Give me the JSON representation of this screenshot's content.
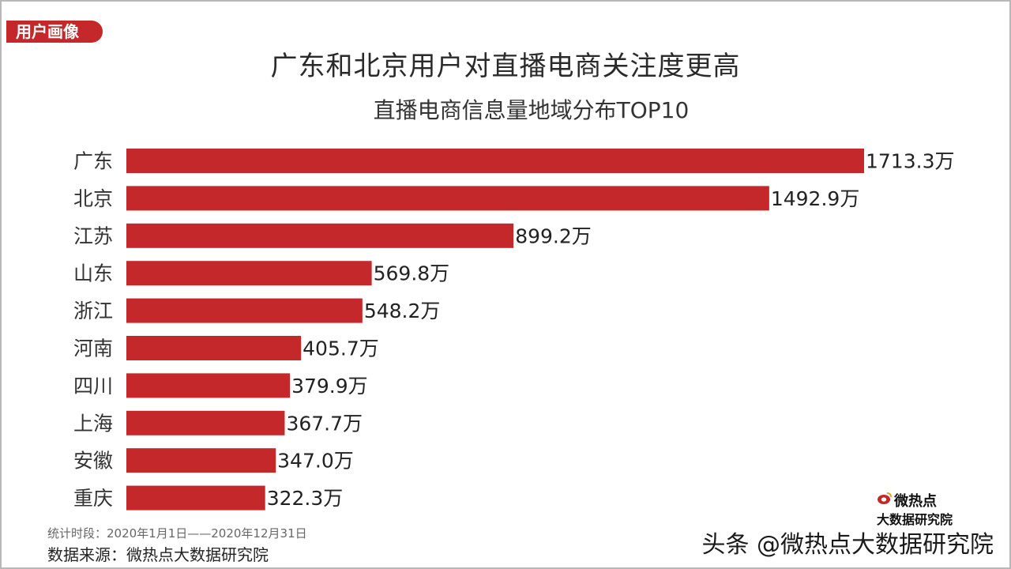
{
  "header": {
    "tag": "用户画像",
    "title": "广东和北京用户对直播电商关注度更高",
    "subtitle": "直播电商信息量地域分布TOP10"
  },
  "footer": {
    "period": "统计时段：2020年1月1日——2020年12月31日",
    "source": "数据来源：微热点大数据研究院",
    "logo_line1": "微热点",
    "logo_line2": "大数据研究院",
    "watermark": "头条 @微热点大数据研究院"
  },
  "colors": {
    "bar": "#c5282a",
    "tag_bg": "#c5282a"
  },
  "chart_data": {
    "type": "bar",
    "orientation": "horizontal",
    "title": "直播电商信息量地域分布TOP10",
    "categories": [
      "广东",
      "北京",
      "江苏",
      "山东",
      "浙江",
      "河南",
      "四川",
      "上海",
      "安徽",
      "重庆"
    ],
    "values": [
      1713.3,
      1492.9,
      899.2,
      569.8,
      548.2,
      405.7,
      379.9,
      367.7,
      347.0,
      322.3
    ],
    "labels": [
      "1713.3万",
      "1492.9万",
      "899.2万",
      "569.8万",
      "548.2万",
      "405.7万",
      "379.9万",
      "367.7万",
      "347.0万",
      "322.3万"
    ],
    "xlim": [
      0,
      1713.3
    ],
    "grid": false,
    "legend": "none"
  }
}
